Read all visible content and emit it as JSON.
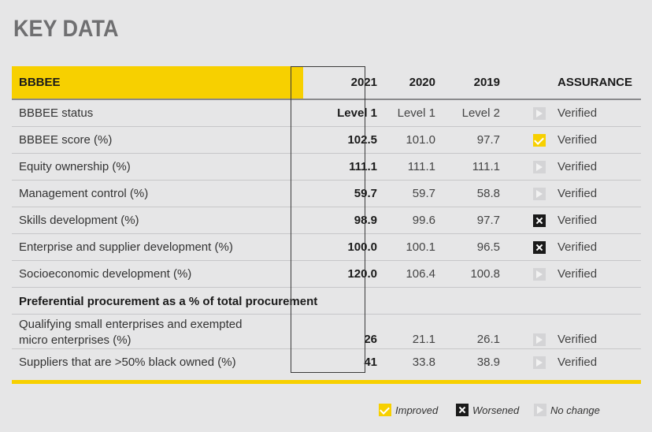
{
  "title": "KEY DATA",
  "header": {
    "section": "BBBEE",
    "y2021": "2021",
    "y2020": "2020",
    "y2019": "2019",
    "assurance": "ASSURANCE"
  },
  "rows": [
    {
      "label": "BBBEE status",
      "y2021": "Level 1",
      "y2020": "Level 1",
      "y2019": "Level 2",
      "trend": "no-change",
      "assurance": "Verified"
    },
    {
      "label": "BBBEE score (%)",
      "y2021": "102.5",
      "y2020": "101.0",
      "y2019": "97.7",
      "trend": "improved",
      "assurance": "Verified"
    },
    {
      "label": "Equity ownership (%)",
      "y2021": "111.1",
      "y2020": "111.1",
      "y2019": "111.1",
      "trend": "no-change",
      "assurance": "Verified"
    },
    {
      "label": "Management control (%)",
      "y2021": "59.7",
      "y2020": "59.7",
      "y2019": "58.8",
      "trend": "no-change",
      "assurance": "Verified"
    },
    {
      "label": "Skills development (%)",
      "y2021": "98.9",
      "y2020": "99.6",
      "y2019": "97.7",
      "trend": "worsened",
      "assurance": "Verified"
    },
    {
      "label": "Enterprise and supplier development (%)",
      "y2021": "100.0",
      "y2020": "100.1",
      "y2019": "96.5",
      "trend": "worsened",
      "assurance": "Verified"
    },
    {
      "label": "Socioeconomic development (%)",
      "y2021": "120.0",
      "y2020": "106.4",
      "y2019": "100.8",
      "trend": "no-change",
      "assurance": "Verified"
    }
  ],
  "section_row": "Preferential procurement as a % of total procurement",
  "sub_rows": [
    {
      "label_line1": "Qualifying small enterprises and exempted",
      "label_line2": "micro enterprises (%)",
      "y2021": "26",
      "y2020": "21.1",
      "y2019": "26.1",
      "trend": "no-change",
      "assurance": "Verified"
    },
    {
      "label": "Suppliers that are >50% black owned (%)",
      "y2021": "41",
      "y2020": "33.8",
      "y2019": "38.9",
      "trend": "no-change",
      "assurance": "Verified"
    }
  ],
  "legend": {
    "improved": "Improved",
    "worsened": "Worsened",
    "no_change": "No change"
  },
  "colors": {
    "accent": "#f7d000",
    "background": "#e6e6e7",
    "worsened": "#1a1a1a",
    "no_change": "#d4d4d6"
  }
}
